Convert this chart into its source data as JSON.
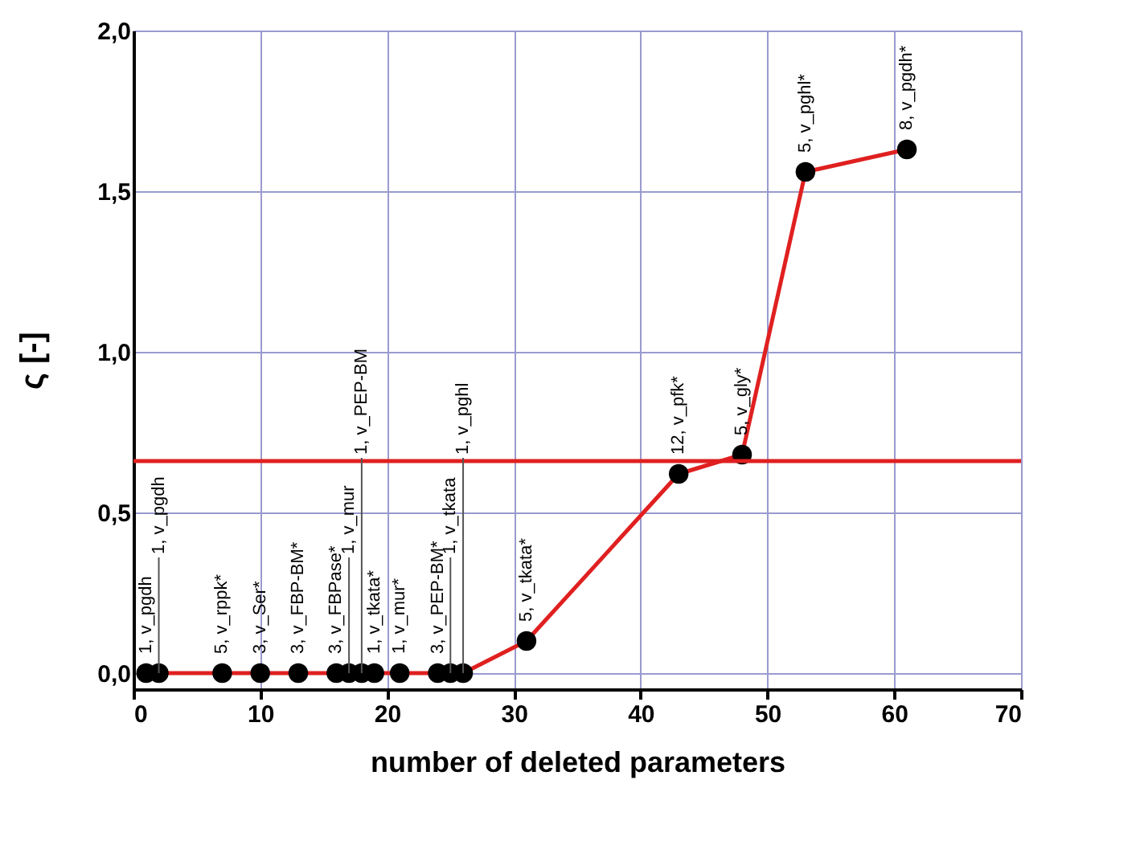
{
  "chart_data": {
    "type": "line",
    "xlabel": "number of deleted parameters",
    "ylabel": "ς [-]",
    "x": [
      1,
      2,
      7,
      10,
      13,
      16,
      17,
      18,
      19,
      21,
      24,
      25,
      26,
      31,
      43,
      48,
      53,
      61
    ],
    "series": [
      {
        "color": "#e02020",
        "values": [
          0,
          0,
          0,
          0,
          0,
          0,
          0,
          0,
          0,
          0,
          0,
          0,
          0,
          0.1,
          0.62,
          0.68,
          1.56,
          1.63
        ]
      }
    ],
    "marker": "circle",
    "line_style": "solid",
    "grid": true,
    "xlim": [
      0,
      70
    ],
    "xticks": [
      0,
      10,
      20,
      30,
      40,
      50,
      60,
      70
    ],
    "ylim": [
      -0.05,
      2.0
    ],
    "yticks": [
      {
        "value": 0,
        "label": "0,0"
      },
      {
        "value": 0.5,
        "label": "0,5"
      },
      {
        "value": 1.0,
        "label": "1,0"
      },
      {
        "value": 1.5,
        "label": "1,5"
      },
      {
        "value": 2.0,
        "label": "2,0"
      }
    ],
    "ref_lines": [
      {
        "axis": "y",
        "value": 0.66,
        "color": "#e02020"
      }
    ],
    "annotations": [
      {
        "text": "1, v_pgdh",
        "x": 1,
        "y": 0
      },
      {
        "text": "1, v_pgdh",
        "x": 2,
        "y": 0
      },
      {
        "text": "5, v_rppk*",
        "x": 7,
        "y": 0
      },
      {
        "text": "3, v_Ser*",
        "x": 10,
        "y": 0
      },
      {
        "text": "3, v_FBP-BM*",
        "x": 13,
        "y": 0
      },
      {
        "text": "3, v_FBPase*",
        "x": 16,
        "y": 0
      },
      {
        "text": "1, v_mur",
        "x": 17,
        "y": 0
      },
      {
        "text": "1, v_PEP-BM",
        "x": 18,
        "y": 0
      },
      {
        "text": "1, v_tkata*",
        "x": 19,
        "y": 0
      },
      {
        "text": "1, v_mur*",
        "x": 21,
        "y": 0
      },
      {
        "text": "3, v_PEP-BM*",
        "x": 24,
        "y": 0
      },
      {
        "text": "1, v_tkata",
        "x": 25,
        "y": 0
      },
      {
        "text": "1, v_pghl",
        "x": 26,
        "y": 0
      },
      {
        "text": "5, v_tkata*",
        "x": 31,
        "y": 0.1
      },
      {
        "text": "12, v_pfk*",
        "x": 43,
        "y": 0.62
      },
      {
        "text": "5, v_gly*",
        "x": 48,
        "y": 0.68
      },
      {
        "text": "5, v_pghl*",
        "x": 53,
        "y": 1.56
      },
      {
        "text": "8, v_pgdh*",
        "x": 61,
        "y": 1.63
      }
    ]
  }
}
